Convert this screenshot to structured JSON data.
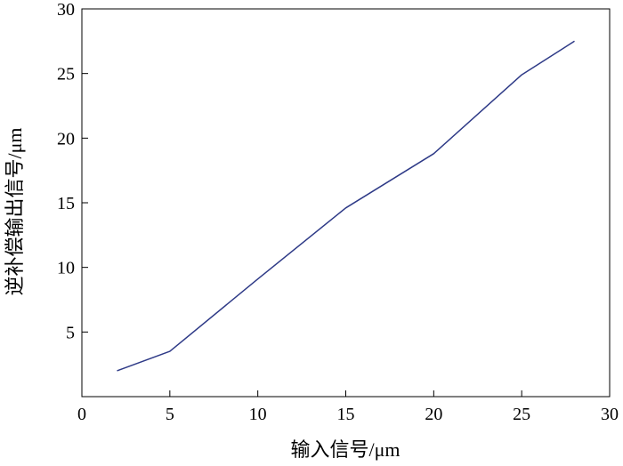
{
  "chart_data": {
    "type": "line",
    "title": "",
    "xlabel": "输入信号/μm",
    "ylabel": "逆补偿输出信号/μm",
    "xlim": [
      0,
      30
    ],
    "ylim": [
      0,
      30
    ],
    "xticks": [
      0,
      5,
      10,
      15,
      20,
      25,
      30
    ],
    "yticks": [
      5,
      10,
      15,
      20,
      25,
      30
    ],
    "grid": false,
    "series": [
      {
        "color": "#2e3a87",
        "x": [
          2,
          5,
          10,
          15,
          20,
          25,
          28
        ],
        "y": [
          2.0,
          3.5,
          9.1,
          14.6,
          18.8,
          24.9,
          27.5
        ]
      }
    ]
  }
}
